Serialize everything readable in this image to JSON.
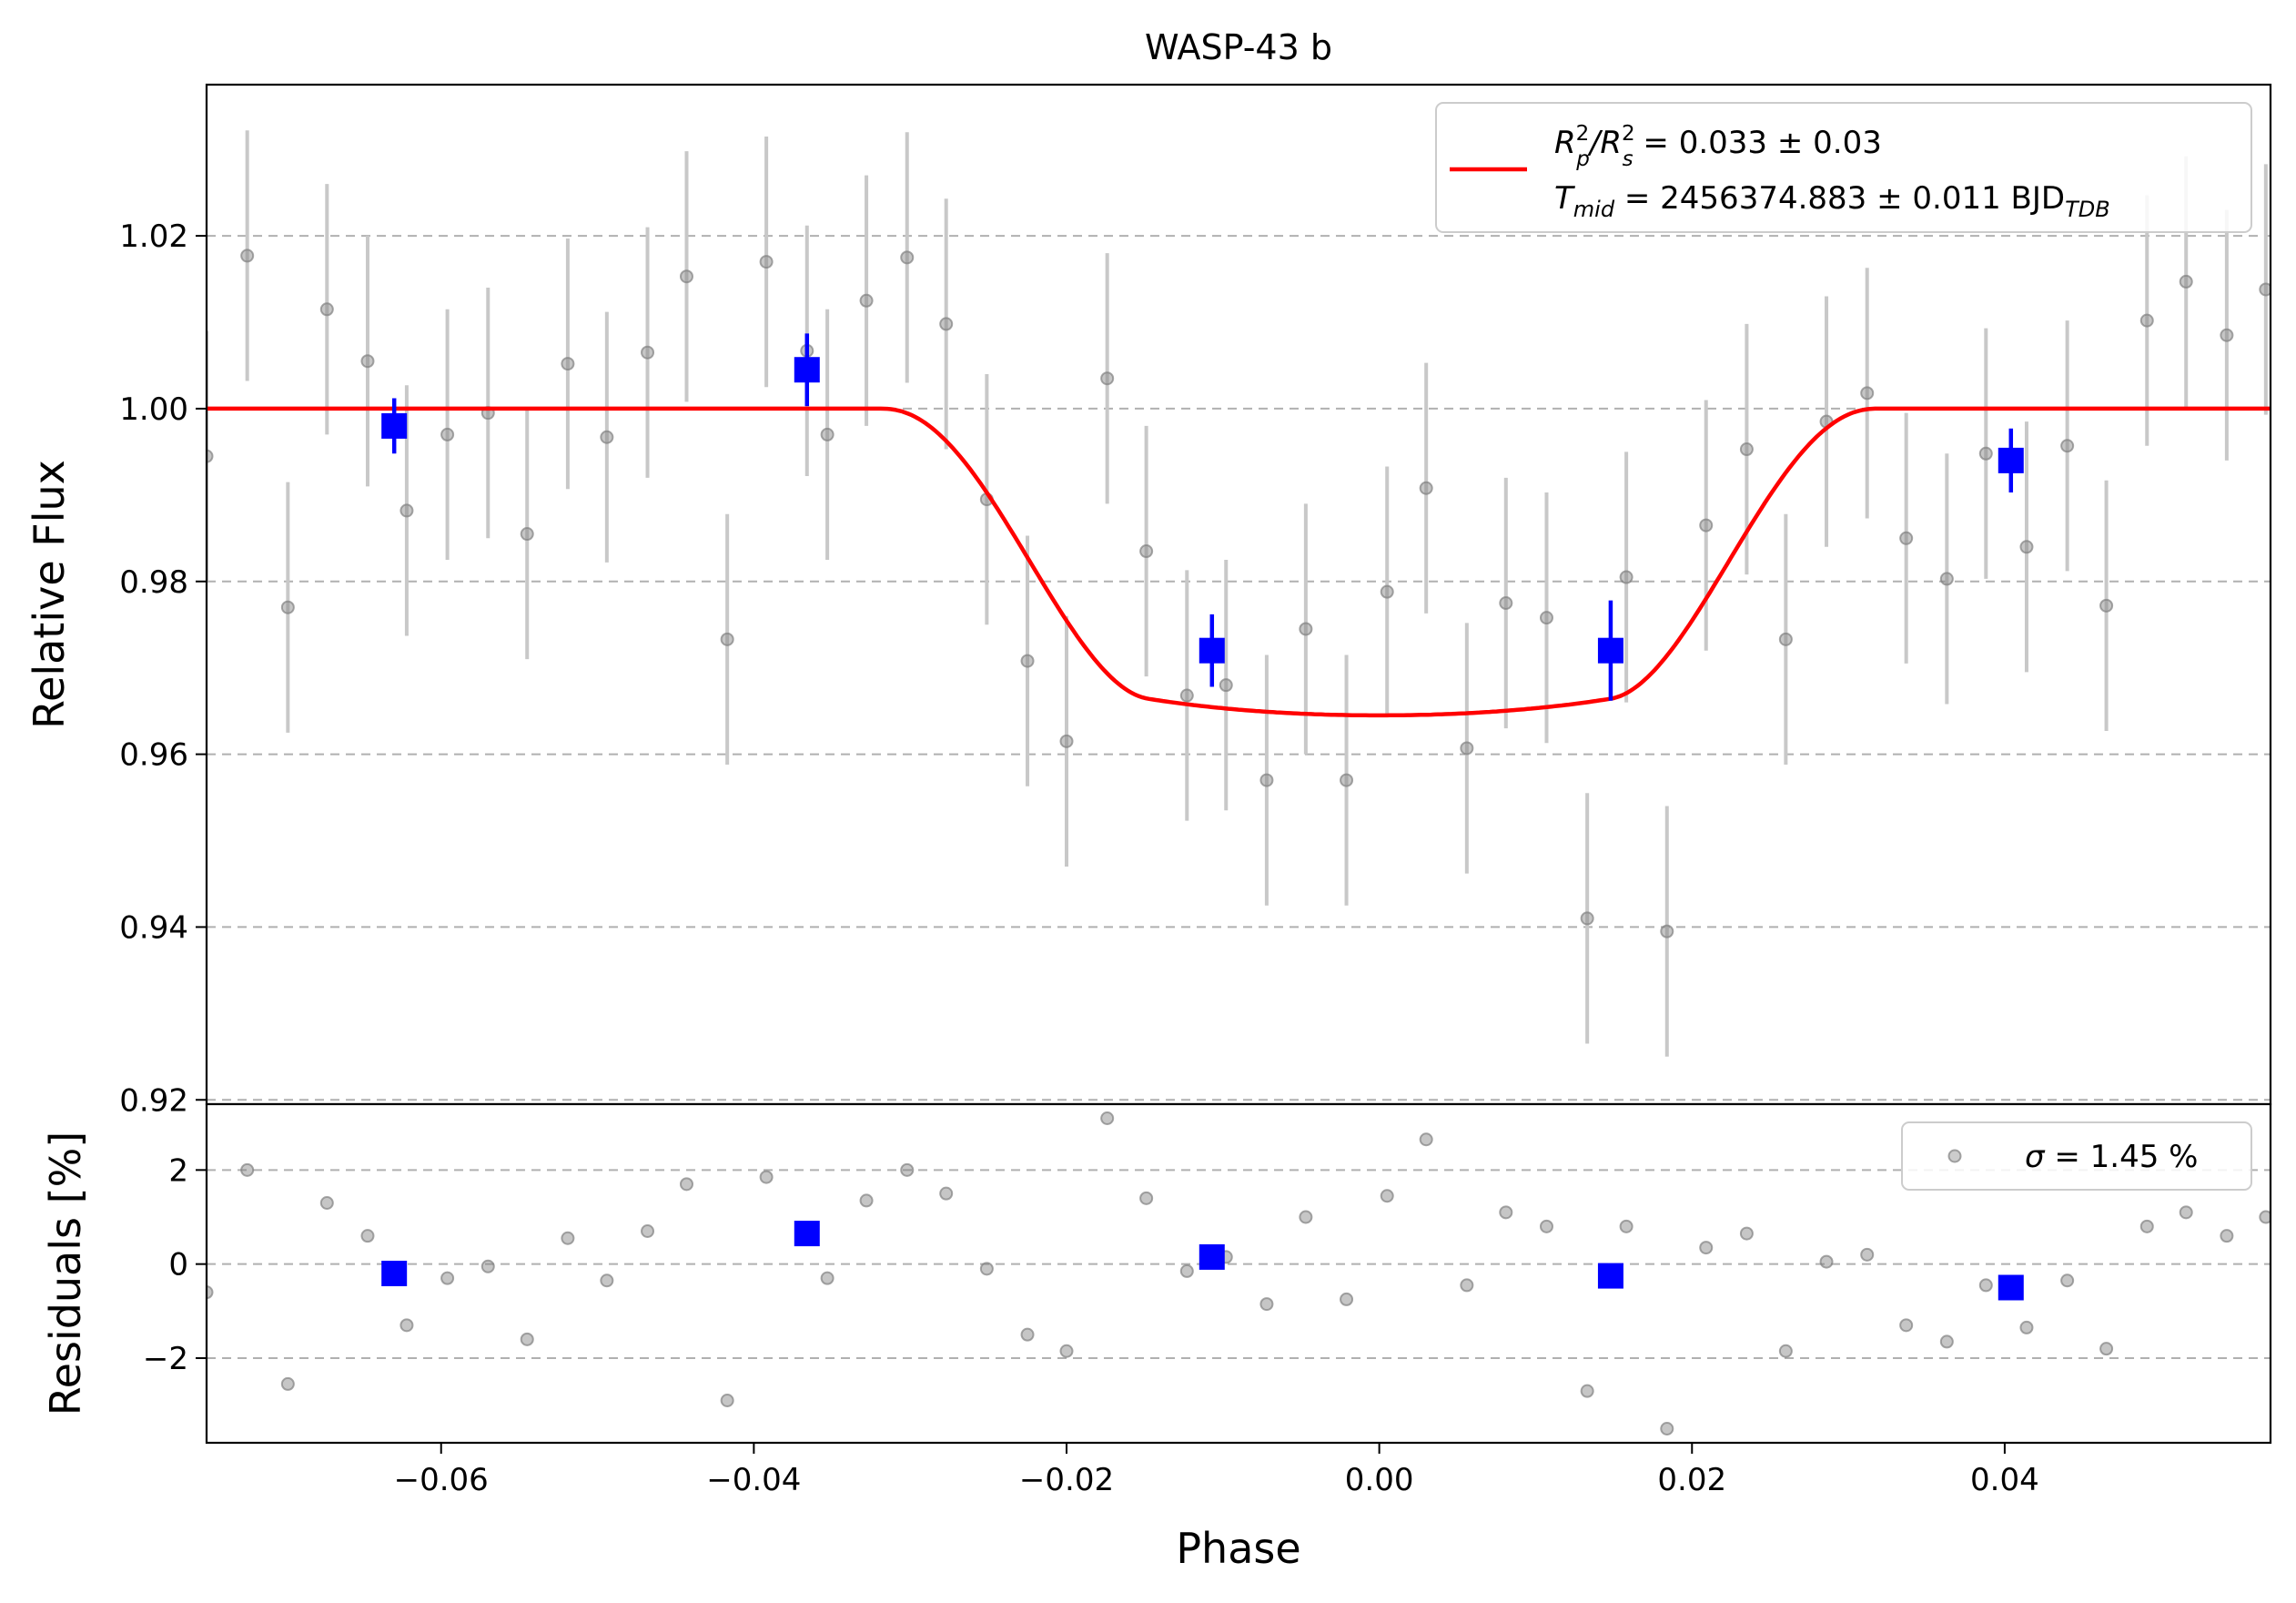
{
  "chart_data": {
    "type": "scatter",
    "title": "WASP-43 b",
    "xlabel": "Phase",
    "colors": {
      "raw_points": "#808080",
      "raw_errorbars": "#c8c8c8",
      "binned": "#0000ff",
      "model": "#ff0000",
      "grid": "#b0b0b0"
    },
    "grid": "horizontal dashed",
    "xlim": [
      -0.075,
      0.057
    ],
    "xticks": [
      -0.06,
      -0.04,
      -0.02,
      0.0,
      0.02,
      0.04
    ],
    "xtick_labels": [
      "−0.06",
      "−0.04",
      "−0.02",
      "0.00",
      "0.02",
      "0.04"
    ],
    "top_panel": {
      "ylabel": "Relative Flux",
      "ylim": [
        0.9195,
        1.0375
      ],
      "yticks": [
        0.92,
        0.94,
        0.96,
        0.98,
        1.0,
        1.02
      ],
      "ytick_labels": [
        "0.92",
        "0.94",
        "0.96",
        "0.98",
        "1.00",
        "1.02"
      ],
      "legend_placement": "upper right",
      "legend": {
        "line1": {
          "main": "R",
          "sup1": "2",
          "sub1": "p",
          "mid": "/R",
          "sup2": "2",
          "sub2": "s",
          "rest": " = 0.033 ± 0.03"
        },
        "line2": {
          "main": "T",
          "sub1": "mid",
          "rest": " = 2456374.883 ± 0.011 BJD",
          "sub2": "TDB"
        }
      },
      "model": {
        "rp2_rs2": 0.033,
        "depth": 0.0355,
        "t_ingress_start": -0.0318,
        "t_ingress_end": -0.0148,
        "limb_darkening_u1": 0.45,
        "limb_darkening_u2": 0.2
      },
      "raw": [
        {
          "x": -0.075,
          "y": 0.9945,
          "err": 0.0145
        },
        {
          "x": -0.0724,
          "y": 1.0177,
          "err": 0.0145
        },
        {
          "x": -0.0698,
          "y": 0.977,
          "err": 0.0145
        },
        {
          "x": -0.0673,
          "y": 1.0115,
          "err": 0.0145
        },
        {
          "x": -0.0647,
          "y": 1.0055,
          "err": 0.0145
        },
        {
          "x": -0.0622,
          "y": 0.9882,
          "err": 0.0145
        },
        {
          "x": -0.0596,
          "y": 0.997,
          "err": 0.0145
        },
        {
          "x": -0.057,
          "y": 0.9995,
          "err": 0.0145
        },
        {
          "x": -0.0545,
          "y": 0.9855,
          "err": 0.0145
        },
        {
          "x": -0.0519,
          "y": 1.0052,
          "err": 0.0145
        },
        {
          "x": -0.0494,
          "y": 0.9967,
          "err": 0.0145
        },
        {
          "x": -0.0468,
          "y": 1.0065,
          "err": 0.0145
        },
        {
          "x": -0.0443,
          "y": 1.0153,
          "err": 0.0145
        },
        {
          "x": -0.0417,
          "y": 0.9733,
          "err": 0.0145
        },
        {
          "x": -0.0392,
          "y": 1.017,
          "err": 0.0145
        },
        {
          "x": -0.0366,
          "y": 1.0067,
          "err": 0.0145
        },
        {
          "x": -0.0353,
          "y": 0.997,
          "err": 0.0145
        },
        {
          "x": -0.0328,
          "y": 1.0125,
          "err": 0.0145
        },
        {
          "x": -0.0302,
          "y": 1.0175,
          "err": 0.0145
        },
        {
          "x": -0.0277,
          "y": 1.0098,
          "err": 0.0145
        },
        {
          "x": -0.0251,
          "y": 0.9895,
          "err": 0.0145
        },
        {
          "x": -0.0225,
          "y": 0.9708,
          "err": 0.0145
        },
        {
          "x": -0.02,
          "y": 0.9615,
          "err": 0.0145
        },
        {
          "x": -0.0174,
          "y": 1.0035,
          "err": 0.0145
        },
        {
          "x": -0.0149,
          "y": 0.9835,
          "err": 0.0145
        },
        {
          "x": -0.0123,
          "y": 0.9668,
          "err": 0.0145
        },
        {
          "x": -0.0098,
          "y": 0.968,
          "err": 0.0145
        },
        {
          "x": -0.0072,
          "y": 0.957,
          "err": 0.0145
        },
        {
          "x": -0.0047,
          "y": 0.9745,
          "err": 0.0145
        },
        {
          "x": -0.0021,
          "y": 0.957,
          "err": 0.0145
        },
        {
          "x": 0.0005,
          "y": 0.9788,
          "err": 0.0145
        },
        {
          "x": 0.003,
          "y": 0.9908,
          "err": 0.0145
        },
        {
          "x": 0.0056,
          "y": 0.9607,
          "err": 0.0145
        },
        {
          "x": 0.0081,
          "y": 0.9775,
          "err": 0.0145
        },
        {
          "x": 0.0107,
          "y": 0.9758,
          "err": 0.0145
        },
        {
          "x": 0.0133,
          "y": 0.941,
          "err": 0.0145
        },
        {
          "x": 0.0158,
          "y": 0.9805,
          "err": 0.0145
        },
        {
          "x": 0.0184,
          "y": 0.9395,
          "err": 0.0145
        },
        {
          "x": 0.0209,
          "y": 0.9865,
          "err": 0.0145
        },
        {
          "x": 0.0235,
          "y": 0.9953,
          "err": 0.0145
        },
        {
          "x": 0.026,
          "y": 0.9733,
          "err": 0.0145
        },
        {
          "x": 0.0286,
          "y": 0.9985,
          "err": 0.0145
        },
        {
          "x": 0.0312,
          "y": 1.0018,
          "err": 0.0145
        },
        {
          "x": 0.0337,
          "y": 0.985,
          "err": 0.0145
        },
        {
          "x": 0.0363,
          "y": 0.9803,
          "err": 0.0145
        },
        {
          "x": 0.0388,
          "y": 0.9948,
          "err": 0.0145
        },
        {
          "x": 0.0414,
          "y": 0.984,
          "err": 0.0145
        },
        {
          "x": 0.044,
          "y": 0.9957,
          "err": 0.0145
        },
        {
          "x": 0.0465,
          "y": 0.9772,
          "err": 0.0145
        },
        {
          "x": 0.0491,
          "y": 1.0102,
          "err": 0.0145
        },
        {
          "x": 0.0516,
          "y": 1.0147,
          "err": 0.0145
        },
        {
          "x": 0.0542,
          "y": 1.0085,
          "err": 0.0145
        },
        {
          "x": 0.0567,
          "y": 1.0138,
          "err": 0.0145
        }
      ],
      "binned": [
        {
          "x": -0.063,
          "y": 0.998,
          "err": 0.0032
        },
        {
          "x": -0.0366,
          "y": 1.0045,
          "err": 0.0042
        },
        {
          "x": -0.0107,
          "y": 0.972,
          "err": 0.0042
        },
        {
          "x": 0.0148,
          "y": 0.972,
          "err": 0.0058
        },
        {
          "x": 0.0404,
          "y": 0.994,
          "err": 0.0037
        }
      ]
    },
    "bottom_panel": {
      "ylabel": "Residuals [%]",
      "ylim": [
        -3.8,
        3.4
      ],
      "yticks": [
        -2,
        0,
        2
      ],
      "ytick_labels": [
        "−2",
        "0",
        "2"
      ],
      "legend_placement": "upper right",
      "legend": {
        "sigma_symbol": "σ",
        "sigma_text": " = 1.45 %",
        "sigma_pct": 1.45
      },
      "raw": [
        {
          "x": -0.075,
          "y": -0.6
        },
        {
          "x": -0.0724,
          "y": 2.0
        },
        {
          "x": -0.0698,
          "y": -2.55
        },
        {
          "x": -0.0673,
          "y": 1.3
        },
        {
          "x": -0.0647,
          "y": 0.6
        },
        {
          "x": -0.0622,
          "y": -1.3
        },
        {
          "x": -0.0596,
          "y": -0.3
        },
        {
          "x": -0.057,
          "y": -0.05
        },
        {
          "x": -0.0545,
          "y": -1.6
        },
        {
          "x": -0.0519,
          "y": 0.55
        },
        {
          "x": -0.0494,
          "y": -0.35
        },
        {
          "x": -0.0468,
          "y": 0.7
        },
        {
          "x": -0.0443,
          "y": 1.7
        },
        {
          "x": -0.0417,
          "y": -2.9
        },
        {
          "x": -0.0392,
          "y": 1.85
        },
        {
          "x": -0.0366,
          "y": 0.75
        },
        {
          "x": -0.0353,
          "y": -0.3
        },
        {
          "x": -0.0328,
          "y": 1.35
        },
        {
          "x": -0.0302,
          "y": 2.0
        },
        {
          "x": -0.0277,
          "y": 1.5
        },
        {
          "x": -0.0251,
          "y": -0.1
        },
        {
          "x": -0.0225,
          "y": -1.5
        },
        {
          "x": -0.02,
          "y": -1.85
        },
        {
          "x": -0.0174,
          "y": 3.1
        },
        {
          "x": -0.0149,
          "y": 1.4
        },
        {
          "x": -0.0123,
          "y": -0.15
        },
        {
          "x": -0.0098,
          "y": 0.15
        },
        {
          "x": -0.0072,
          "y": -0.85
        },
        {
          "x": -0.0047,
          "y": 1.0
        },
        {
          "x": -0.0021,
          "y": -0.75
        },
        {
          "x": 0.0005,
          "y": 1.45
        },
        {
          "x": 0.003,
          "y": 2.65
        },
        {
          "x": 0.0056,
          "y": -0.45
        },
        {
          "x": 0.0081,
          "y": 1.1
        },
        {
          "x": 0.0107,
          "y": 0.8
        },
        {
          "x": 0.0133,
          "y": -2.7
        },
        {
          "x": 0.0158,
          "y": 0.8
        },
        {
          "x": 0.0184,
          "y": -3.5
        },
        {
          "x": 0.0209,
          "y": 0.35
        },
        {
          "x": 0.0235,
          "y": 0.65
        },
        {
          "x": 0.026,
          "y": -1.85
        },
        {
          "x": 0.0286,
          "y": 0.05
        },
        {
          "x": 0.0312,
          "y": 0.2
        },
        {
          "x": 0.0337,
          "y": -1.3
        },
        {
          "x": 0.0363,
          "y": -1.65
        },
        {
          "x": 0.0388,
          "y": -0.45
        },
        {
          "x": 0.0414,
          "y": -1.35
        },
        {
          "x": 0.044,
          "y": -0.35
        },
        {
          "x": 0.0465,
          "y": -1.8
        },
        {
          "x": 0.0491,
          "y": 0.8
        },
        {
          "x": 0.0516,
          "y": 1.1
        },
        {
          "x": 0.0542,
          "y": 0.6
        },
        {
          "x": 0.0567,
          "y": 1.0
        }
      ],
      "binned": [
        {
          "x": -0.063,
          "y": -0.2
        },
        {
          "x": -0.0366,
          "y": 0.65
        },
        {
          "x": -0.0107,
          "y": 0.15
        },
        {
          "x": 0.0148,
          "y": -0.25
        },
        {
          "x": 0.0404,
          "y": -0.5
        }
      ]
    }
  }
}
